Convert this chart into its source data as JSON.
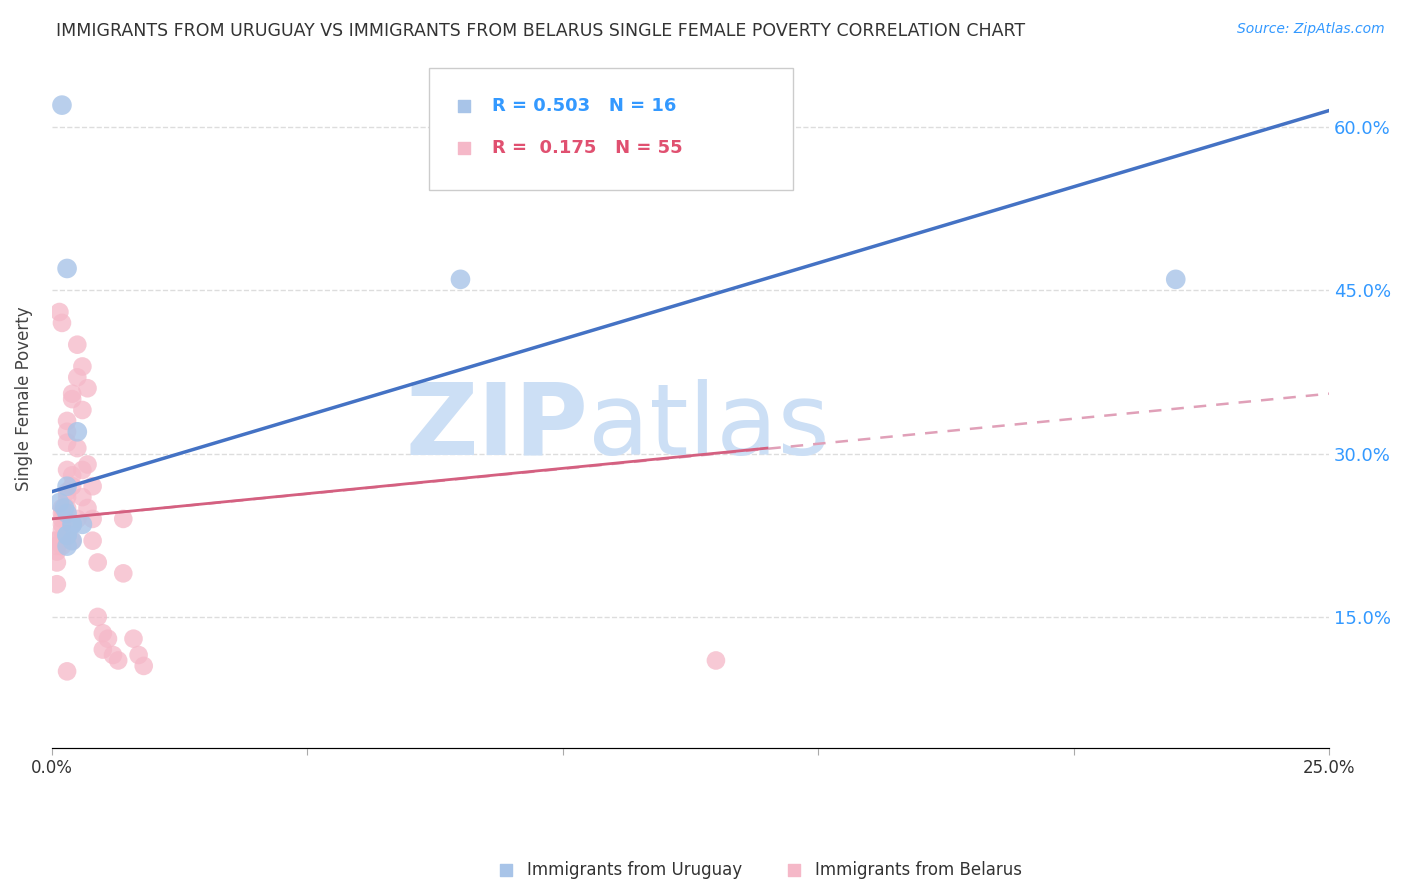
{
  "title": "IMMIGRANTS FROM URUGUAY VS IMMIGRANTS FROM BELARUS SINGLE FEMALE POVERTY CORRELATION CHART",
  "source": "Source: ZipAtlas.com",
  "ylabel": "Single Female Poverty",
  "legend_label1": "Immigrants from Uruguay",
  "legend_label2": "Immigrants from Belarus",
  "r1": 0.503,
  "n1": 16,
  "r2": 0.175,
  "n2": 55,
  "xlim": [
    0.0,
    0.25
  ],
  "ylim": [
    0.03,
    0.67
  ],
  "x_ticks": [
    0.0,
    0.05,
    0.1,
    0.15,
    0.2,
    0.25
  ],
  "x_tick_labels": [
    "0.0%",
    "",
    "",
    "",
    "",
    "25.0%"
  ],
  "y_ticks": [
    0.15,
    0.3,
    0.45,
    0.6
  ],
  "y_tick_labels_right": [
    "15.0%",
    "30.0%",
    "45.0%",
    "60.0%"
  ],
  "color_uruguay": "#a8c4e8",
  "color_belarus": "#f5b8c8",
  "color_line_uruguay": "#4472c4",
  "color_line_belarus": "#d46080",
  "color_dashed_belarus": "#e0a0b8",
  "watermark_zip": "#ccdff5",
  "watermark_atlas": "#ccdff5",
  "uruguay_x": [
    0.0015,
    0.0025,
    0.003,
    0.003,
    0.004,
    0.004,
    0.005,
    0.006,
    0.003,
    0.003,
    0.003,
    0.004,
    0.08,
    0.002,
    0.22,
    0.003
  ],
  "uruguay_y": [
    0.255,
    0.25,
    0.47,
    0.245,
    0.235,
    0.235,
    0.32,
    0.235,
    0.27,
    0.225,
    0.225,
    0.22,
    0.46,
    0.62,
    0.46,
    0.215
  ],
  "belarus_x": [
    0.0005,
    0.001,
    0.001,
    0.001,
    0.001,
    0.001,
    0.0015,
    0.002,
    0.002,
    0.002,
    0.002,
    0.002,
    0.002,
    0.002,
    0.003,
    0.003,
    0.003,
    0.003,
    0.003,
    0.003,
    0.003,
    0.004,
    0.004,
    0.004,
    0.004,
    0.004,
    0.005,
    0.005,
    0.005,
    0.005,
    0.006,
    0.006,
    0.006,
    0.006,
    0.007,
    0.007,
    0.007,
    0.008,
    0.008,
    0.008,
    0.009,
    0.009,
    0.01,
    0.01,
    0.011,
    0.012,
    0.013,
    0.014,
    0.014,
    0.016,
    0.017,
    0.018,
    0.13,
    0.002,
    0.003
  ],
  "belarus_y": [
    0.22,
    0.22,
    0.215,
    0.21,
    0.2,
    0.18,
    0.43,
    0.25,
    0.245,
    0.24,
    0.235,
    0.23,
    0.22,
    0.215,
    0.33,
    0.32,
    0.31,
    0.285,
    0.265,
    0.26,
    0.25,
    0.355,
    0.35,
    0.28,
    0.27,
    0.22,
    0.4,
    0.37,
    0.305,
    0.24,
    0.38,
    0.34,
    0.285,
    0.26,
    0.36,
    0.29,
    0.25,
    0.27,
    0.24,
    0.22,
    0.2,
    0.15,
    0.135,
    0.12,
    0.13,
    0.115,
    0.11,
    0.24,
    0.19,
    0.13,
    0.115,
    0.105,
    0.11,
    0.42,
    0.1
  ],
  "line_uruguay_x0": 0.0,
  "line_uruguay_y0": 0.265,
  "line_uruguay_x1": 0.25,
  "line_uruguay_y1": 0.615,
  "line_belarus_x0": 0.0,
  "line_belarus_y0": 0.24,
  "line_belarus_x1": 0.14,
  "line_belarus_y1": 0.305,
  "line_belarus_dashed_x0": 0.0,
  "line_belarus_dashed_y0": 0.24,
  "line_belarus_dashed_x1": 0.25,
  "line_belarus_dashed_y1": 0.355
}
